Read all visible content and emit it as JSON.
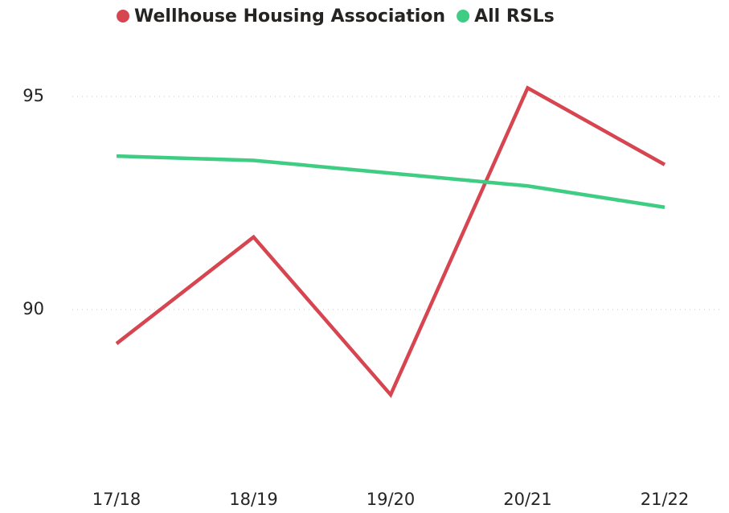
{
  "chart_data": {
    "type": "line",
    "categories": [
      "17/18",
      "18/19",
      "19/20",
      "20/21",
      "21/22"
    ],
    "series": [
      {
        "name": "Wellhouse Housing Association",
        "color": "#d64550",
        "values": [
          89.2,
          91.7,
          88.0,
          95.2,
          93.4
        ]
      },
      {
        "name": "All RSLs",
        "color": "#3fcd84",
        "values": [
          93.6,
          93.5,
          93.2,
          92.9,
          92.4
        ]
      }
    ],
    "ylim": [
      86.3,
      96.1
    ],
    "yticks": [
      90,
      95
    ],
    "grid": true
  }
}
